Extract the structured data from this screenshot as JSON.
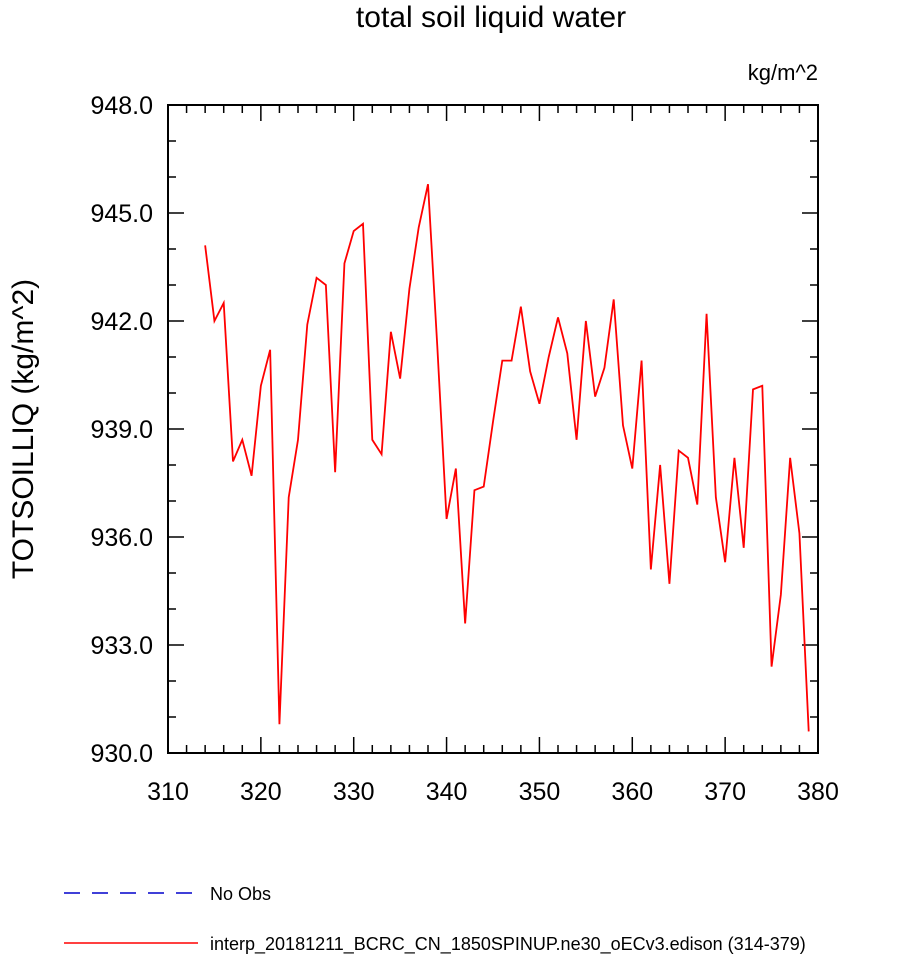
{
  "chart_data": {
    "type": "line",
    "title": "total soil liquid water",
    "units": "kg/m^2",
    "xlabel": "",
    "ylabel": "TOTSOILLIQ  (kg/m^2)",
    "xlim": [
      310,
      380
    ],
    "ylim": [
      930.0,
      948.0
    ],
    "x_ticks": [
      310,
      320,
      330,
      340,
      350,
      360,
      370,
      380
    ],
    "x_tick_labels": [
      "310",
      "320",
      "330",
      "340",
      "350",
      "360",
      "370",
      "380"
    ],
    "y_ticks": [
      930,
      933,
      936,
      939,
      942,
      945,
      948
    ],
    "y_tick_labels": [
      "930.0",
      "933.0",
      "936.0",
      "939.0",
      "942.0",
      "945.0",
      "948.0"
    ],
    "grid": false,
    "legend_position": "bottom",
    "series": [
      {
        "name": "No Obs",
        "color": "#0000cc",
        "style": "dashed",
        "x": [],
        "y": []
      },
      {
        "name": "interp_20181211_BCRC_CN_1850SPINUP.ne30_oECv3.edison (314-379)",
        "color": "#ff0000",
        "style": "solid",
        "x": [
          314,
          315,
          316,
          317,
          318,
          319,
          320,
          321,
          322,
          323,
          324,
          325,
          326,
          327,
          328,
          329,
          330,
          331,
          332,
          333,
          334,
          335,
          336,
          337,
          338,
          339,
          340,
          341,
          342,
          343,
          344,
          345,
          346,
          347,
          348,
          349,
          350,
          351,
          352,
          353,
          354,
          355,
          356,
          357,
          358,
          359,
          360,
          361,
          362,
          363,
          364,
          365,
          366,
          367,
          368,
          369,
          370,
          371,
          372,
          373,
          374,
          375,
          376,
          377,
          378,
          379
        ],
        "y": [
          944.1,
          942.0,
          942.5,
          938.1,
          938.7,
          937.7,
          940.2,
          941.2,
          930.8,
          937.1,
          938.7,
          941.9,
          943.2,
          943.0,
          937.8,
          943.6,
          944.5,
          944.7,
          938.7,
          938.3,
          941.7,
          940.4,
          942.9,
          944.6,
          945.8,
          941.3,
          936.5,
          937.9,
          933.6,
          937.3,
          937.4,
          939.2,
          940.9,
          940.9,
          942.4,
          940.6,
          939.7,
          941.0,
          942.1,
          941.1,
          938.7,
          942.0,
          939.9,
          940.7,
          942.6,
          939.1,
          937.9,
          940.9,
          935.1,
          938.0,
          934.7,
          938.4,
          938.2,
          936.9,
          942.2,
          937.1,
          935.3,
          938.2,
          935.7,
          940.1,
          940.2,
          932.4,
          934.4,
          938.2,
          936.1,
          930.6
        ]
      }
    ]
  }
}
